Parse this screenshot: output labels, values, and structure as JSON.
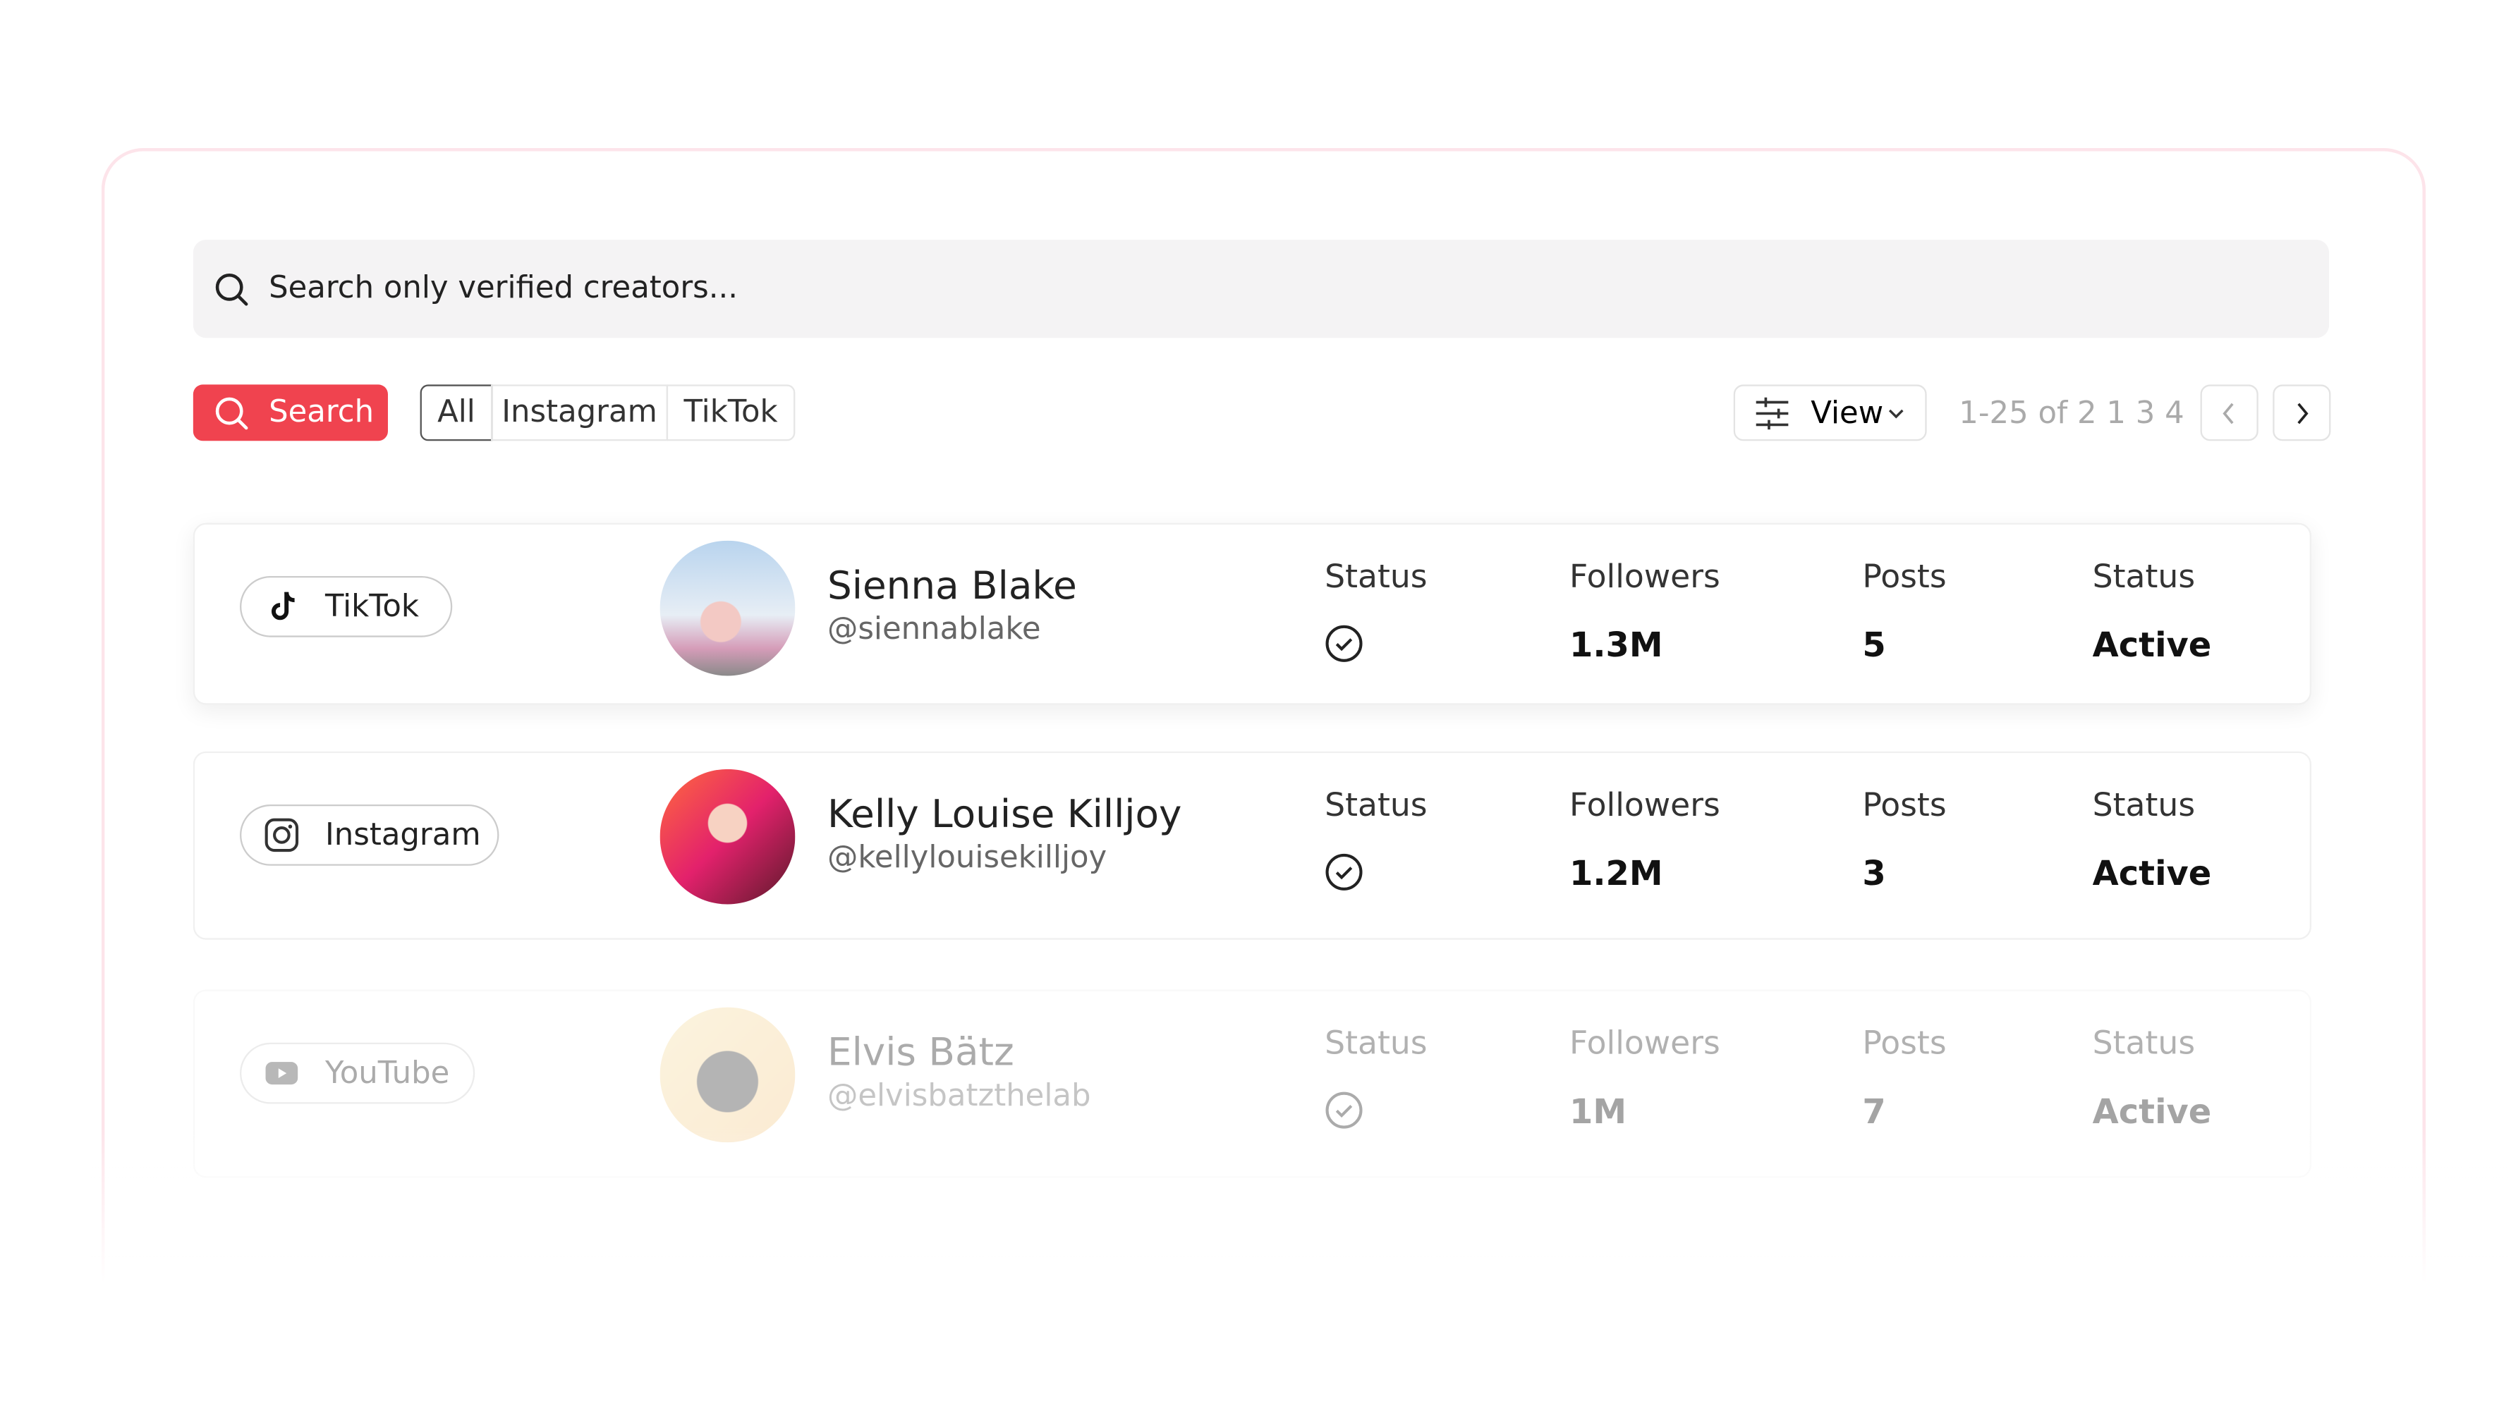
{
  "search": {
    "placeholder": "Search only verified creators...",
    "button": "Search"
  },
  "filters": [
    "All",
    "Instagram",
    "TikTok"
  ],
  "view": "View",
  "pagination": "1-25 of 2 1 3 4",
  "rows": [
    {
      "platform": "TikTok",
      "name": "Sienna Blake",
      "handle": "@siennablake",
      "labels": [
        "Status",
        "Followers",
        "Posts",
        "Status"
      ],
      "followers": "1.3M",
      "posts": "5",
      "status": "Active"
    },
    {
      "platform": "Instagram",
      "name": "Kelly Louise Killjoy",
      "handle": "@kellylouisekilljoy",
      "labels": [
        "Status",
        "Followers",
        "Posts",
        "Status"
      ],
      "followers": "1.2M",
      "posts": "3",
      "status": "Active"
    },
    {
      "platform": "YouTube",
      "name": "Elvis Bätz",
      "handle": "@elvisbatzthelab",
      "labels": [
        "Status",
        "Followers",
        "Posts",
        "Status"
      ],
      "followers": "1M",
      "posts": "7",
      "status": "Active"
    }
  ]
}
